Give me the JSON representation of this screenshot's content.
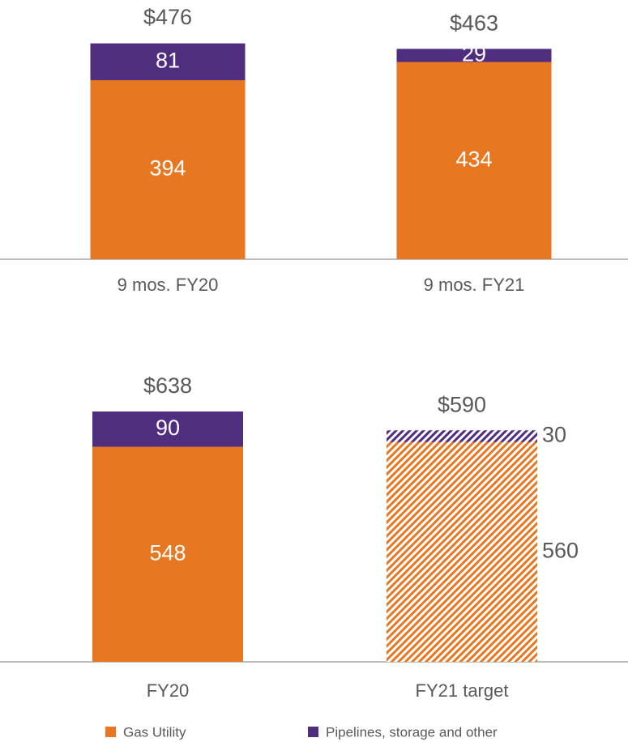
{
  "chart_data": [
    {
      "type": "stacked_bar",
      "categories": [
        "9 mos. FY20",
        "9 mos. FY21"
      ],
      "series": [
        {
          "name": "Gas Utility",
          "color": "#e87722",
          "values": [
            394,
            434
          ]
        },
        {
          "name": "Pipelines, storage and other",
          "color": "#4f2d7f",
          "values": [
            81,
            29
          ]
        }
      ],
      "totals": [
        476,
        463
      ],
      "total_labels": [
        "$476",
        "$463"
      ],
      "hatch": [
        false,
        false
      ]
    },
    {
      "type": "stacked_bar",
      "categories": [
        "FY20",
        "FY21 target"
      ],
      "series": [
        {
          "name": "Gas Utility",
          "color": "#e87722",
          "values": [
            548,
            560
          ]
        },
        {
          "name": "Pipelines, storage and other",
          "color": "#4f2d7f",
          "values": [
            90,
            30
          ]
        }
      ],
      "totals": [
        638,
        590
      ],
      "total_labels": [
        "$638",
        "$590"
      ],
      "hatch": [
        false,
        true
      ]
    }
  ]
}
